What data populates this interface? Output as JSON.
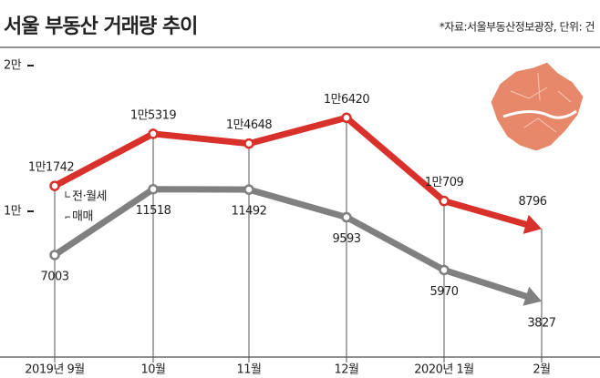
{
  "chart_data": {
    "type": "line",
    "title": "서울 부동산 거래량 추이",
    "source": "*자료:서울부동산정보광장, 단위: 건",
    "categories": [
      "2019년 9월",
      "10월",
      "11월",
      "12월",
      "2020년 1월",
      "2월"
    ],
    "series": [
      {
        "name": "전·월세",
        "color": "#d8312b",
        "values": [
          11742,
          15319,
          14648,
          16420,
          10709,
          8796
        ],
        "value_labels": [
          "1만1742",
          "1만5319",
          "1만4648",
          "1만6420",
          "1만709",
          "8796"
        ]
      },
      {
        "name": "매매",
        "color": "#808080",
        "values": [
          7003,
          11518,
          11492,
          9593,
          5970,
          3827
        ]
      }
    ],
    "ylim": [
      0,
      20000
    ],
    "yticks": [
      {
        "value": 10000,
        "label": "1만"
      },
      {
        "value": 20000,
        "label": "2만"
      }
    ]
  }
}
